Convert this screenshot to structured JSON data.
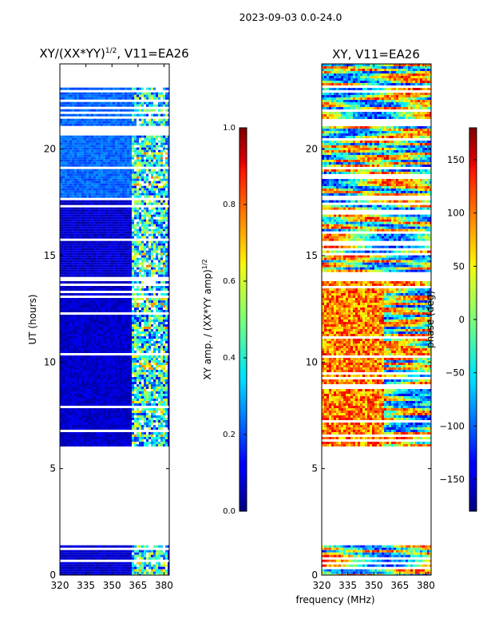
{
  "suptitle": "2023-09-03 0.0-24.0",
  "xlabel_shared": "frequency (MHz)",
  "colors": {
    "cmap": "jet",
    "nodata": "#ffffff",
    "frame": "#000000"
  },
  "chart_data": [
    {
      "type": "heatmap",
      "id": "amp",
      "title_main": "XY/(XX*YY)",
      "title_sup": "1/2",
      "title_rest": ", V11=EA26",
      "xlabel": "",
      "ylabel": "UT (hours)",
      "xlim": [
        320,
        383
      ],
      "ylim": [
        0,
        24
      ],
      "xticks": [
        320,
        335,
        350,
        365,
        380
      ],
      "yticks": [
        0,
        5,
        10,
        15,
        20
      ],
      "data_bands_hours": [
        [
          0.0,
          1.4
        ],
        [
          6.1,
          13.8
        ],
        [
          14.0,
          17.6
        ],
        [
          17.8,
          23.0
        ]
      ],
      "bright_freq_range_mhz": [
        361,
        382
      ],
      "colorbar": {
        "label_main": "XY amp. / (XX*YY amp)",
        "label_sup": "1/2",
        "range": [
          0.0,
          1.0
        ],
        "ticks": [
          "0.0",
          "0.2",
          "0.4",
          "0.6",
          "0.8",
          "1.0"
        ]
      }
    },
    {
      "type": "heatmap",
      "id": "phase",
      "title_main": "XY, V11=EA26",
      "xlabel": "frequency (MHz)",
      "ylabel": "",
      "xlim": [
        320,
        383
      ],
      "ylim": [
        0,
        24
      ],
      "xticks": [
        320,
        335,
        350,
        365,
        380
      ],
      "yticks": [
        0,
        5,
        10,
        15,
        20
      ],
      "data_bands_hours": [
        [
          0.0,
          1.4
        ],
        [
          6.1,
          13.8
        ],
        [
          14.0,
          17.6
        ],
        [
          17.8,
          24.0
        ]
      ],
      "colorbar": {
        "label_main": "phase (deg)",
        "range": [
          -180,
          180
        ],
        "ticks": [
          "−150",
          "−100",
          "−50",
          "0",
          "50",
          "100",
          "150"
        ]
      }
    }
  ]
}
